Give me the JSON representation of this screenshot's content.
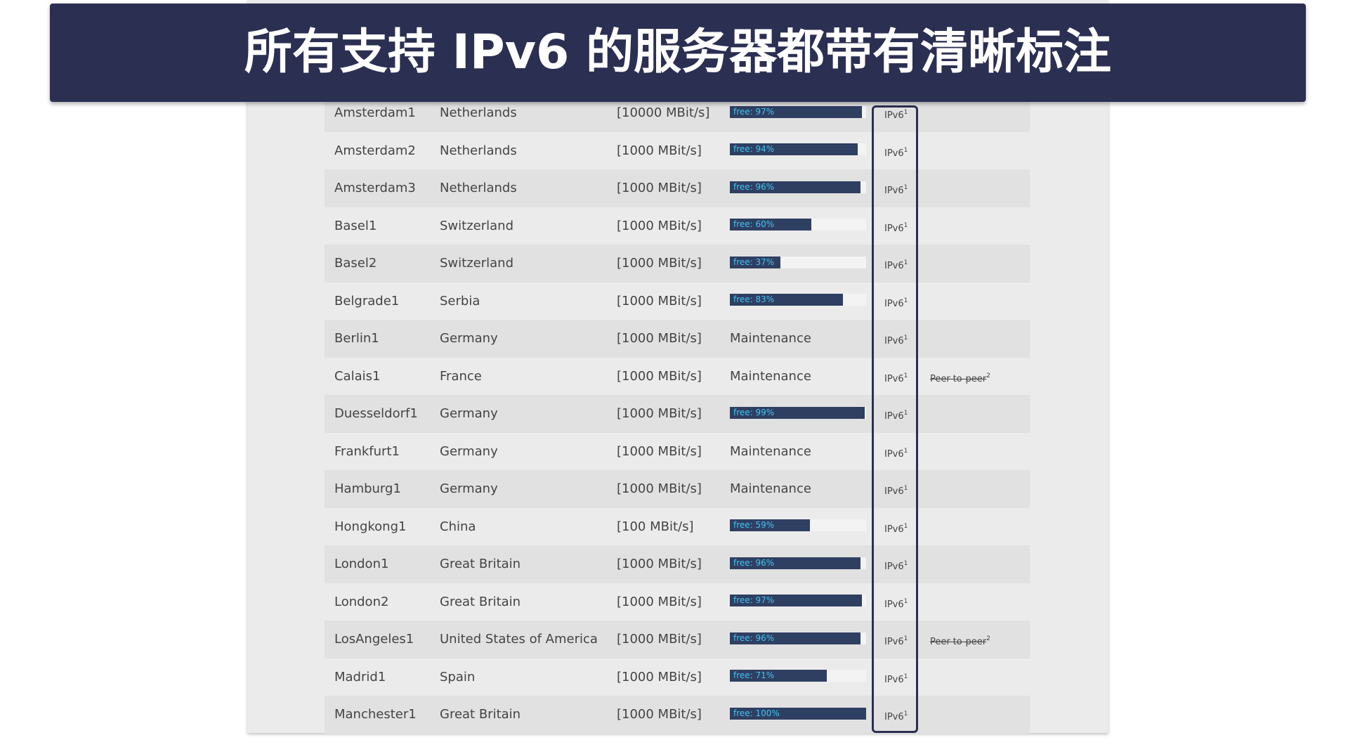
{
  "banner": {
    "title": "所有支持 IPv6 的服务器都带有清晰标注"
  },
  "table": {
    "rows": [
      {
        "name": "Amsterdam1",
        "country": "Netherlands",
        "speed": "[10000 MBit/s]",
        "load": {
          "value": 97,
          "label": "free: 97%"
        },
        "ipv6": "IPv6",
        "ipv6_note": "1"
      },
      {
        "name": "Amsterdam2",
        "country": "Netherlands",
        "speed": "[1000 MBit/s]",
        "load": {
          "value": 94,
          "label": "free: 94%"
        },
        "ipv6": "IPv6",
        "ipv6_note": "1"
      },
      {
        "name": "Amsterdam3",
        "country": "Netherlands",
        "speed": "[1000 MBit/s]",
        "load": {
          "value": 96,
          "label": "free: 96%"
        },
        "ipv6": "IPv6",
        "ipv6_note": "1"
      },
      {
        "name": "Basel1",
        "country": "Switzerland",
        "speed": "[1000 MBit/s]",
        "load": {
          "value": 60,
          "label": "free: 60%"
        },
        "ipv6": "IPv6",
        "ipv6_note": "1"
      },
      {
        "name": "Basel2",
        "country": "Switzerland",
        "speed": "[1000 MBit/s]",
        "load": {
          "value": 37,
          "label": "free: 37%"
        },
        "ipv6": "IPv6",
        "ipv6_note": "1"
      },
      {
        "name": "Belgrade1",
        "country": "Serbia",
        "speed": "[1000 MBit/s]",
        "load": {
          "value": 83,
          "label": "free: 83%"
        },
        "ipv6": "IPv6",
        "ipv6_note": "1"
      },
      {
        "name": "Berlin1",
        "country": "Germany",
        "speed": "[1000 MBit/s]",
        "load": "Maintenance",
        "ipv6": "IPv6",
        "ipv6_note": "1"
      },
      {
        "name": "Calais1",
        "country": "France",
        "speed": "[1000 MBit/s]",
        "load": "Maintenance",
        "ipv6": "IPv6",
        "ipv6_note": "1",
        "p2p": "Peer-to-peer",
        "p2p_note": "2"
      },
      {
        "name": "Duesseldorf1",
        "country": "Germany",
        "speed": "[1000 MBit/s]",
        "load": {
          "value": 99,
          "label": "free: 99%"
        },
        "ipv6": "IPv6",
        "ipv6_note": "1"
      },
      {
        "name": "Frankfurt1",
        "country": "Germany",
        "speed": "[1000 MBit/s]",
        "load": "Maintenance",
        "ipv6": "IPv6",
        "ipv6_note": "1"
      },
      {
        "name": "Hamburg1",
        "country": "Germany",
        "speed": "[1000 MBit/s]",
        "load": "Maintenance",
        "ipv6": "IPv6",
        "ipv6_note": "1"
      },
      {
        "name": "Hongkong1",
        "country": "China",
        "speed": "[100 MBit/s]",
        "load": {
          "value": 59,
          "label": "free: 59%"
        },
        "ipv6": "IPv6",
        "ipv6_note": "1"
      },
      {
        "name": "London1",
        "country": "Great Britain",
        "speed": "[1000 MBit/s]",
        "load": {
          "value": 96,
          "label": "free: 96%"
        },
        "ipv6": "IPv6",
        "ipv6_note": "1"
      },
      {
        "name": "London2",
        "country": "Great Britain",
        "speed": "[1000 MBit/s]",
        "load": {
          "value": 97,
          "label": "free: 97%"
        },
        "ipv6": "IPv6",
        "ipv6_note": "1"
      },
      {
        "name": "LosAngeles1",
        "country": "United States of America",
        "speed": "[1000 MBit/s]",
        "load": {
          "value": 96,
          "label": "free: 96%"
        },
        "ipv6": "IPv6",
        "ipv6_note": "1",
        "p2p": "Peer-to-peer",
        "p2p_note": "2"
      },
      {
        "name": "Madrid1",
        "country": "Spain",
        "speed": "[1000 MBit/s]",
        "load": {
          "value": 71,
          "label": "free: 71%"
        },
        "ipv6": "IPv6",
        "ipv6_note": "1"
      },
      {
        "name": "Manchester1",
        "country": "Great Britain",
        "speed": "[1000 MBit/s]",
        "load": {
          "value": 100,
          "label": "free: 100%"
        },
        "ipv6": "IPv6",
        "ipv6_note": "1"
      }
    ]
  }
}
